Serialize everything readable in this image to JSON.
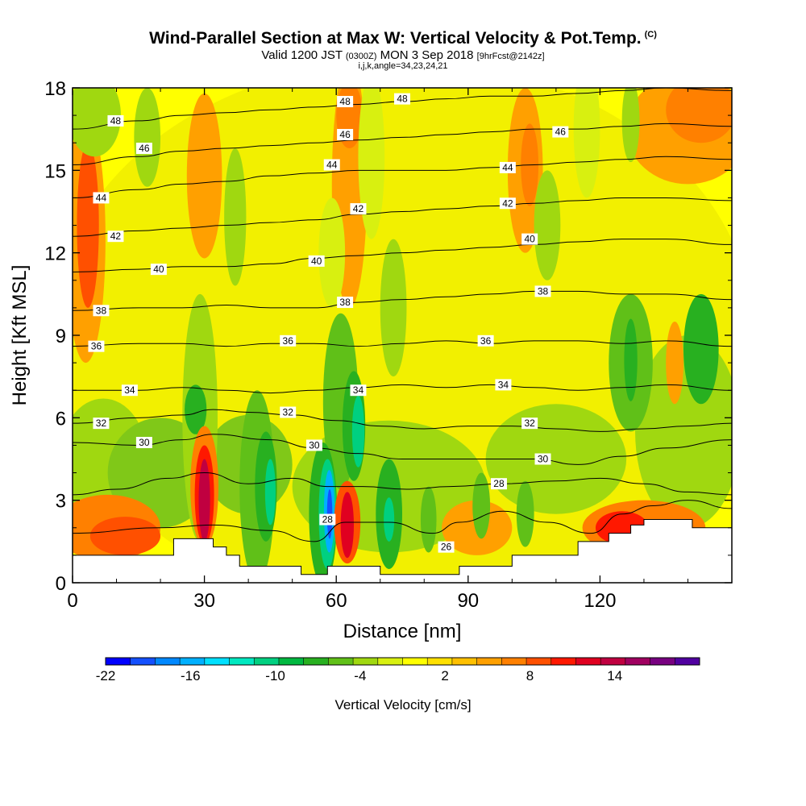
{
  "chart_data": {
    "type": "contour",
    "title": "Wind-Parallel Section at Max W: Vertical Velocity & Pot.Temp.",
    "title_mark": "(C)",
    "subtitle": {
      "valid": "Valid 1200 JST",
      "utc": "(0300Z)",
      "date": "MON 3 Sep 2018",
      "forecast": "[9hrFcst@2142z]"
    },
    "subtitle2": "i,j,k,angle=34,23,24,21",
    "xlabel": "Distance [nm]",
    "ylabel": "Height [Kft MSL]",
    "xlim": [
      0,
      150
    ],
    "ylim": [
      0,
      18
    ],
    "xticks": [
      "0",
      "30",
      "60",
      "90",
      "120"
    ],
    "yticks": [
      "0",
      "3",
      "6",
      "9",
      "12",
      "15",
      "18"
    ],
    "colorbar": {
      "label": "Vertical Velocity [cm/s]",
      "ticks": [
        "-22",
        "-16",
        "-10",
        "-4",
        "2",
        "8",
        "14"
      ],
      "min": -22,
      "max": 20,
      "colors": [
        "#0000ff",
        "#1450ff",
        "#0088ff",
        "#00b0ff",
        "#00e0ff",
        "#00e8c0",
        "#00d080",
        "#00b840",
        "#28b020",
        "#60c018",
        "#a0d810",
        "#d8f010",
        "#ffff00",
        "#ffe000",
        "#ffc000",
        "#ffa000",
        "#ff8000",
        "#ff5000",
        "#ff1800",
        "#e00020",
        "#c00040",
        "#a00060",
        "#780080",
        "#5000a0"
      ]
    },
    "theta_contours": [
      {
        "value": 26,
        "points": [
          [
            0,
            1.8
          ],
          [
            20,
            2.0
          ],
          [
            32,
            2.1
          ],
          [
            45,
            1.9
          ],
          [
            55,
            1.5
          ],
          [
            62,
            2.2
          ],
          [
            72,
            2.2
          ],
          [
            82,
            1.8
          ],
          [
            88,
            2.2
          ],
          [
            98,
            2.6
          ],
          [
            108,
            2.2
          ],
          [
            118,
            1.8
          ],
          [
            125,
            2.5
          ],
          [
            132,
            2.8
          ],
          [
            140,
            3.0
          ],
          [
            150,
            2.7
          ]
        ]
      },
      {
        "value": 28,
        "points": [
          [
            0,
            3.2
          ],
          [
            10,
            3.4
          ],
          [
            22,
            3.8
          ],
          [
            30,
            4.0
          ],
          [
            40,
            3.6
          ],
          [
            50,
            3.8
          ],
          [
            58,
            3.5
          ],
          [
            66,
            3.5
          ],
          [
            76,
            3.4
          ],
          [
            86,
            3.5
          ],
          [
            98,
            3.6
          ],
          [
            110,
            3.7
          ],
          [
            120,
            3.8
          ],
          [
            130,
            3.6
          ],
          [
            140,
            3.3
          ],
          [
            150,
            3.2
          ]
        ]
      },
      {
        "value": 30,
        "points": [
          [
            0,
            5.1
          ],
          [
            15,
            5.0
          ],
          [
            25,
            5.2
          ],
          [
            32,
            5.4
          ],
          [
            45,
            5.2
          ],
          [
            55,
            4.9
          ],
          [
            65,
            4.7
          ],
          [
            75,
            4.5
          ],
          [
            85,
            4.5
          ],
          [
            95,
            4.5
          ],
          [
            105,
            4.5
          ],
          [
            115,
            4.3
          ],
          [
            125,
            4.6
          ],
          [
            135,
            4.9
          ],
          [
            150,
            5.2
          ]
        ]
      },
      {
        "value": 32,
        "points": [
          [
            0,
            5.8
          ],
          [
            15,
            6.0
          ],
          [
            25,
            6.1
          ],
          [
            32,
            6.3
          ],
          [
            40,
            6.2
          ],
          [
            50,
            6.1
          ],
          [
            60,
            5.9
          ],
          [
            70,
            5.7
          ],
          [
            80,
            5.6
          ],
          [
            90,
            5.7
          ],
          [
            100,
            5.7
          ],
          [
            110,
            5.6
          ],
          [
            120,
            5.5
          ],
          [
            130,
            5.6
          ],
          [
            140,
            5.7
          ],
          [
            150,
            5.8
          ]
        ]
      },
      {
        "value": 34,
        "points": [
          [
            0,
            7.0
          ],
          [
            15,
            7.0
          ],
          [
            25,
            7.1
          ],
          [
            35,
            7.0
          ],
          [
            45,
            6.9
          ],
          [
            55,
            7.0
          ],
          [
            65,
            7.1
          ],
          [
            75,
            7.2
          ],
          [
            85,
            7.1
          ],
          [
            95,
            7.2
          ],
          [
            105,
            7.1
          ],
          [
            115,
            7.0
          ],
          [
            125,
            7.1
          ],
          [
            135,
            7.2
          ],
          [
            150,
            7.0
          ]
        ]
      },
      {
        "value": 36,
        "points": [
          [
            0,
            8.6
          ],
          [
            15,
            8.7
          ],
          [
            25,
            8.7
          ],
          [
            35,
            8.6
          ],
          [
            45,
            8.7
          ],
          [
            55,
            8.7
          ],
          [
            65,
            8.6
          ],
          [
            75,
            8.7
          ],
          [
            85,
            8.8
          ],
          [
            95,
            8.7
          ],
          [
            105,
            8.8
          ],
          [
            115,
            8.8
          ],
          [
            125,
            8.7
          ],
          [
            135,
            8.8
          ],
          [
            150,
            8.6
          ]
        ]
      },
      {
        "value": 38,
        "points": [
          [
            0,
            9.9
          ],
          [
            15,
            10.0
          ],
          [
            25,
            10.0
          ],
          [
            35,
            10.1
          ],
          [
            45,
            10.0
          ],
          [
            55,
            10.0
          ],
          [
            65,
            10.2
          ],
          [
            75,
            10.3
          ],
          [
            85,
            10.4
          ],
          [
            95,
            10.5
          ],
          [
            105,
            10.6
          ],
          [
            115,
            10.6
          ],
          [
            125,
            10.5
          ],
          [
            135,
            10.5
          ],
          [
            150,
            10.3
          ]
        ]
      },
      {
        "value": 40,
        "points": [
          [
            0,
            11.3
          ],
          [
            15,
            11.4
          ],
          [
            25,
            11.5
          ],
          [
            35,
            11.5
          ],
          [
            45,
            11.6
          ],
          [
            55,
            11.8
          ],
          [
            65,
            11.9
          ],
          [
            75,
            12.0
          ],
          [
            85,
            12.1
          ],
          [
            95,
            12.2
          ],
          [
            105,
            12.3
          ],
          [
            115,
            12.4
          ],
          [
            125,
            12.5
          ],
          [
            135,
            12.5
          ],
          [
            150,
            12.3
          ]
        ]
      },
      {
        "value": 42,
        "points": [
          [
            0,
            12.6
          ],
          [
            15,
            12.8
          ],
          [
            25,
            12.9
          ],
          [
            35,
            13.0
          ],
          [
            45,
            13.1
          ],
          [
            55,
            13.2
          ],
          [
            65,
            13.4
          ],
          [
            75,
            13.5
          ],
          [
            85,
            13.6
          ],
          [
            95,
            13.7
          ],
          [
            105,
            13.8
          ],
          [
            115,
            13.9
          ],
          [
            125,
            14.0
          ],
          [
            135,
            14.0
          ],
          [
            150,
            13.9
          ]
        ]
      },
      {
        "value": 44,
        "points": [
          [
            0,
            14.0
          ],
          [
            15,
            14.3
          ],
          [
            25,
            14.5
          ],
          [
            35,
            14.6
          ],
          [
            45,
            14.8
          ],
          [
            55,
            14.9
          ],
          [
            65,
            15.0
          ],
          [
            75,
            15.0
          ],
          [
            85,
            15.0
          ],
          [
            95,
            15.1
          ],
          [
            105,
            15.2
          ],
          [
            115,
            15.3
          ],
          [
            125,
            15.4
          ],
          [
            135,
            15.5
          ],
          [
            150,
            15.4
          ]
        ]
      },
      {
        "value": 46,
        "points": [
          [
            0,
            15.2
          ],
          [
            15,
            15.5
          ],
          [
            25,
            15.7
          ],
          [
            35,
            15.8
          ],
          [
            45,
            15.9
          ],
          [
            55,
            16.0
          ],
          [
            65,
            16.1
          ],
          [
            75,
            16.2
          ],
          [
            85,
            16.3
          ],
          [
            95,
            16.4
          ],
          [
            105,
            16.5
          ],
          [
            115,
            16.5
          ],
          [
            125,
            16.6
          ],
          [
            135,
            16.7
          ],
          [
            150,
            16.6
          ]
        ]
      },
      {
        "value": 48,
        "points": [
          [
            0,
            16.5
          ],
          [
            15,
            16.8
          ],
          [
            25,
            17.0
          ],
          [
            35,
            17.1
          ],
          [
            45,
            17.2
          ],
          [
            55,
            17.3
          ],
          [
            65,
            17.4
          ],
          [
            75,
            17.5
          ],
          [
            85,
            17.6
          ],
          [
            95,
            17.7
          ],
          [
            105,
            17.7
          ],
          [
            115,
            17.8
          ],
          [
            125,
            17.9
          ],
          [
            135,
            18.0
          ],
          [
            150,
            17.9
          ]
        ]
      }
    ],
    "theta_labels": [
      {
        "text": "48",
        "x": 9.8,
        "y": 16.8
      },
      {
        "text": "48",
        "x": 62,
        "y": 17.5
      },
      {
        "text": "48",
        "x": 75,
        "y": 17.6
      },
      {
        "text": "46",
        "x": 16.3,
        "y": 15.8
      },
      {
        "text": "46",
        "x": 62,
        "y": 16.3
      },
      {
        "text": "46",
        "x": 111,
        "y": 16.4
      },
      {
        "text": "44",
        "x": 6.5,
        "y": 14.0
      },
      {
        "text": "44",
        "x": 59,
        "y": 15.2
      },
      {
        "text": "44",
        "x": 99,
        "y": 15.1
      },
      {
        "text": "42",
        "x": 9.8,
        "y": 12.6
      },
      {
        "text": "42",
        "x": 65,
        "y": 13.6
      },
      {
        "text": "42",
        "x": 99,
        "y": 13.8
      },
      {
        "text": "40",
        "x": 19.6,
        "y": 11.4
      },
      {
        "text": "40",
        "x": 55.5,
        "y": 11.7
      },
      {
        "text": "40",
        "x": 104,
        "y": 12.5
      },
      {
        "text": "38",
        "x": 6.5,
        "y": 9.9
      },
      {
        "text": "38",
        "x": 62,
        "y": 10.2
      },
      {
        "text": "38",
        "x": 107,
        "y": 10.6
      },
      {
        "text": "36",
        "x": 5.4,
        "y": 8.6
      },
      {
        "text": "36",
        "x": 49,
        "y": 8.8
      },
      {
        "text": "36",
        "x": 94,
        "y": 8.8
      },
      {
        "text": "34",
        "x": 13,
        "y": 7.0
      },
      {
        "text": "34",
        "x": 65,
        "y": 7.0
      },
      {
        "text": "34",
        "x": 98,
        "y": 7.2
      },
      {
        "text": "32",
        "x": 6.5,
        "y": 5.8
      },
      {
        "text": "32",
        "x": 49,
        "y": 6.2
      },
      {
        "text": "32",
        "x": 104,
        "y": 5.8
      },
      {
        "text": "30",
        "x": 16.3,
        "y": 5.1
      },
      {
        "text": "30",
        "x": 55,
        "y": 5.0
      },
      {
        "text": "30",
        "x": 107,
        "y": 4.5
      },
      {
        "text": "28",
        "x": 97,
        "y": 3.6
      },
      {
        "text": "28",
        "x": 58,
        "y": 2.3
      },
      {
        "text": "26",
        "x": 85,
        "y": 1.3
      }
    ]
  }
}
